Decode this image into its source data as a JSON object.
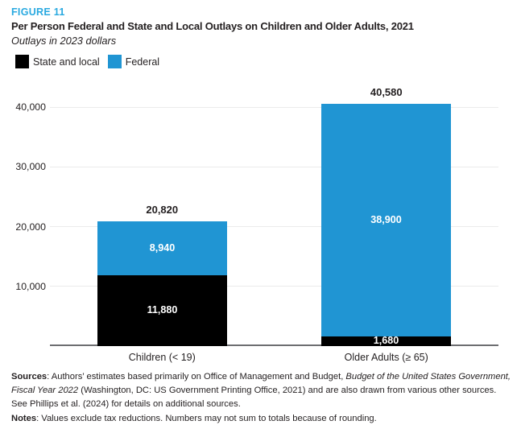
{
  "figure_label": "FIGURE 11",
  "title": "Per Person Federal and State and Local Outlays on Children and Older Adults, 2021",
  "subtitle": "Outlays in 2023 dollars",
  "legend": [
    {
      "label": "State and local",
      "color": "#000000"
    },
    {
      "label": "Federal",
      "color": "#2095d3"
    }
  ],
  "chart_data": {
    "type": "bar",
    "stacked": true,
    "categories": [
      "Children (< 19)",
      "Older Adults (≥ 65)"
    ],
    "series": [
      {
        "name": "State and local",
        "color": "#000000",
        "values": [
          11880,
          1680
        ]
      },
      {
        "name": "Federal",
        "color": "#2095d3",
        "values": [
          8940,
          38900
        ]
      }
    ],
    "totals": [
      20820,
      40580
    ],
    "title": "Per Person Federal and State and Local Outlays on Children and Older Adults, 2021",
    "subtitle": "Outlays in 2023 dollars",
    "xlabel": "",
    "ylabel": "",
    "yticks": [
      10000,
      20000,
      30000,
      40000
    ],
    "ylim": [
      0,
      44000
    ],
    "grid": "horizontal",
    "legend_position": "top-left",
    "value_label_color": "#ffffff"
  },
  "sources": {
    "label": "Sources",
    "text_before_italic": ": Authors’ estimates based primarily on Office of Management and Budget, ",
    "italic": "Budget of the United States Government, Fiscal Year 2022",
    "text_after_italic": " (Washington, DC: US Government Printing Office, 2021) and are also drawn from various other sources. See Phillips et al. (2024) for details on additional sources."
  },
  "notes": {
    "label": "Notes",
    "text": ": Values exclude tax reductions. Numbers may not sum to totals because of rounding."
  },
  "colors": {
    "accent_blue": "#2095d3",
    "figure_label_blue": "#29a9e0",
    "gridline": "#ebebeb",
    "axis": "#6d6e71",
    "text": "#231f20"
  }
}
